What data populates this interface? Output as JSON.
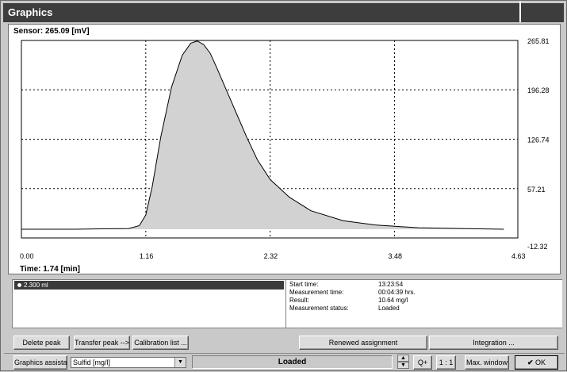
{
  "window": {
    "title": "Graphics"
  },
  "graph": {
    "sensor_label": "Sensor: 265.09 [mV]",
    "time_label": "Time: 1.74 [min]",
    "x_ticks": [
      "0.00",
      "1.16",
      "2.32",
      "3.48",
      "4.63"
    ],
    "y_ticks": [
      "265.81",
      "196.28",
      "126.74",
      "57.21",
      "-12.32"
    ]
  },
  "chart_data": {
    "type": "area",
    "xlim": [
      0,
      4.63
    ],
    "ylim": [
      -12.32,
      265.81
    ],
    "grid": true,
    "x": [
      0.0,
      0.5,
      1.0,
      1.1,
      1.16,
      1.22,
      1.3,
      1.4,
      1.5,
      1.58,
      1.64,
      1.7,
      1.76,
      1.82,
      1.9,
      2.0,
      2.1,
      2.2,
      2.32,
      2.5,
      2.7,
      3.0,
      3.3,
      3.7,
      4.1,
      4.5
    ],
    "y": [
      0,
      0,
      1,
      5,
      20,
      60,
      130,
      200,
      245,
      262,
      265,
      260,
      248,
      228,
      200,
      165,
      130,
      98,
      70,
      45,
      26,
      12,
      6,
      2,
      1,
      0
    ]
  },
  "samples": {
    "selected": "2.300 ml"
  },
  "measurement": {
    "rows": [
      {
        "label": "Start time:",
        "value": "13:23:54"
      },
      {
        "label": "Measurement time:",
        "value": "00:04:39 hrs."
      },
      {
        "label": "Result:",
        "value": "10.64 mg/l"
      },
      {
        "label": "Measurement status:",
        "value": "Loaded"
      }
    ]
  },
  "buttons": {
    "delete_peak": "Delete peak",
    "transfer_peak": "Transfer peak -->",
    "calibration_list": "Calibration list ...",
    "renew_assignment": "Renewed assignment",
    "integration": "Integration ...",
    "graphics_assistant": "Graphics assistant",
    "zoom": "Q+",
    "ratio": "1 : 1",
    "max_window": "Max. window",
    "ok": "OK"
  },
  "parameter_select": {
    "value": "Sulfid [mg/l]"
  },
  "status": {
    "text": "Loaded"
  }
}
